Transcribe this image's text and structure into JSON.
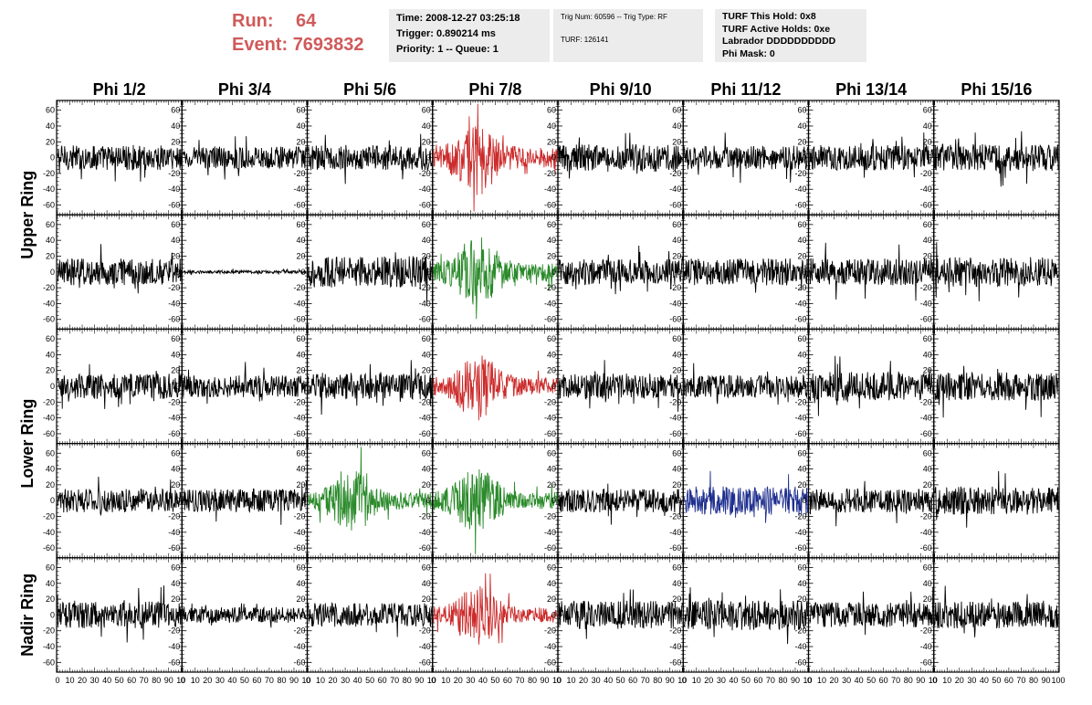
{
  "header": {
    "run_label": "Run:",
    "run_value": "64",
    "event_label": "Event:",
    "event_value": "7693832"
  },
  "info_box_1": {
    "time": "Time: 2008-12-27 03:25:18",
    "trigger": "Trigger: 0.890214 ms",
    "priority": "Priority: 1 -- Queue: 1"
  },
  "info_box_2": {
    "trig": "Trig Num: 60596 -- Trig Type: RF",
    "turf": "TURF: 126141"
  },
  "info_box_3": {
    "hold": "TURF This Hold: 0x8",
    "active": "TURF Active Holds: 0xe",
    "labrador": "Labrador DDDDDDDDDD",
    "phimask": "Phi Mask: 0"
  },
  "chart_data": {
    "type": "line",
    "columns": [
      "Phi 1/2",
      "Phi 3/4",
      "Phi 5/6",
      "Phi 7/8",
      "Phi 9/10",
      "Phi 11/12",
      "Phi 13/14",
      "Phi 15/16"
    ],
    "ring_labels": [
      "Upper Ring",
      "Lower Ring",
      "Nadir Ring"
    ],
    "rows": 5,
    "ylim": [
      -70,
      70
    ],
    "yticks": [
      -60,
      -40,
      -20,
      0,
      20,
      40,
      60
    ],
    "xlim": [
      0,
      100
    ],
    "xtick_labels_last_column": [
      "0",
      "10",
      "20",
      "30",
      "40",
      "50",
      "60",
      "70",
      "80",
      "90",
      "100"
    ],
    "xtick_labels": [
      "0",
      "10",
      "20",
      "30",
      "40",
      "50",
      "60",
      "70",
      "80",
      "90",
      "10"
    ],
    "colors": {
      "default": "#000000",
      "red": "#cc2b2b",
      "green": "#2a8a2a",
      "blue": "#1f2f8f"
    },
    "panels": [
      {
        "row": 0,
        "col": 0,
        "color": "default",
        "amplitude": 16,
        "burst": false
      },
      {
        "row": 0,
        "col": 1,
        "color": "default",
        "amplitude": 14,
        "burst": false
      },
      {
        "row": 0,
        "col": 2,
        "color": "default",
        "amplitude": 16,
        "burst": false
      },
      {
        "row": 0,
        "col": 3,
        "color": "red",
        "amplitude": 28,
        "burst": true
      },
      {
        "row": 0,
        "col": 4,
        "color": "default",
        "amplitude": 18,
        "burst": false
      },
      {
        "row": 0,
        "col": 5,
        "color": "default",
        "amplitude": 15,
        "burst": false
      },
      {
        "row": 0,
        "col": 6,
        "color": "default",
        "amplitude": 16,
        "burst": false
      },
      {
        "row": 0,
        "col": 7,
        "color": "default",
        "amplitude": 17,
        "burst": false
      },
      {
        "row": 1,
        "col": 0,
        "color": "default",
        "amplitude": 17,
        "burst": false
      },
      {
        "row": 1,
        "col": 1,
        "color": "default",
        "amplitude": 2,
        "burst": false
      },
      {
        "row": 1,
        "col": 2,
        "color": "default",
        "amplitude": 20,
        "burst": false
      },
      {
        "row": 1,
        "col": 3,
        "color": "green",
        "amplitude": 26,
        "burst": true
      },
      {
        "row": 1,
        "col": 4,
        "color": "default",
        "amplitude": 16,
        "burst": false
      },
      {
        "row": 1,
        "col": 5,
        "color": "default",
        "amplitude": 17,
        "burst": false
      },
      {
        "row": 1,
        "col": 6,
        "color": "default",
        "amplitude": 17,
        "burst": false
      },
      {
        "row": 1,
        "col": 7,
        "color": "default",
        "amplitude": 19,
        "burst": false
      },
      {
        "row": 2,
        "col": 0,
        "color": "default",
        "amplitude": 16,
        "burst": false
      },
      {
        "row": 2,
        "col": 1,
        "color": "default",
        "amplitude": 14,
        "burst": false
      },
      {
        "row": 2,
        "col": 2,
        "color": "default",
        "amplitude": 17,
        "burst": false
      },
      {
        "row": 2,
        "col": 3,
        "color": "red",
        "amplitude": 24,
        "burst": true
      },
      {
        "row": 2,
        "col": 4,
        "color": "default",
        "amplitude": 16,
        "burst": false
      },
      {
        "row": 2,
        "col": 5,
        "color": "default",
        "amplitude": 14,
        "burst": false
      },
      {
        "row": 2,
        "col": 6,
        "color": "default",
        "amplitude": 18,
        "burst": false
      },
      {
        "row": 2,
        "col": 7,
        "color": "default",
        "amplitude": 18,
        "burst": false
      },
      {
        "row": 3,
        "col": 0,
        "color": "default",
        "amplitude": 15,
        "burst": false
      },
      {
        "row": 3,
        "col": 1,
        "color": "default",
        "amplitude": 15,
        "burst": false
      },
      {
        "row": 3,
        "col": 2,
        "color": "green",
        "amplitude": 22,
        "burst": true
      },
      {
        "row": 3,
        "col": 3,
        "color": "green",
        "amplitude": 24,
        "burst": true
      },
      {
        "row": 3,
        "col": 4,
        "color": "default",
        "amplitude": 15,
        "burst": false
      },
      {
        "row": 3,
        "col": 5,
        "color": "blue",
        "amplitude": 18,
        "burst": false
      },
      {
        "row": 3,
        "col": 6,
        "color": "default",
        "amplitude": 15,
        "burst": false
      },
      {
        "row": 3,
        "col": 7,
        "color": "default",
        "amplitude": 18,
        "burst": false
      },
      {
        "row": 4,
        "col": 0,
        "color": "default",
        "amplitude": 17,
        "burst": false
      },
      {
        "row": 4,
        "col": 1,
        "color": "default",
        "amplitude": 10,
        "burst": false
      },
      {
        "row": 4,
        "col": 2,
        "color": "default",
        "amplitude": 15,
        "burst": false
      },
      {
        "row": 4,
        "col": 3,
        "color": "red",
        "amplitude": 22,
        "burst": true
      },
      {
        "row": 4,
        "col": 4,
        "color": "default",
        "amplitude": 18,
        "burst": false
      },
      {
        "row": 4,
        "col": 5,
        "color": "default",
        "amplitude": 19,
        "burst": false
      },
      {
        "row": 4,
        "col": 6,
        "color": "default",
        "amplitude": 16,
        "burst": false
      },
      {
        "row": 4,
        "col": 7,
        "color": "default",
        "amplitude": 17,
        "burst": false
      }
    ]
  }
}
